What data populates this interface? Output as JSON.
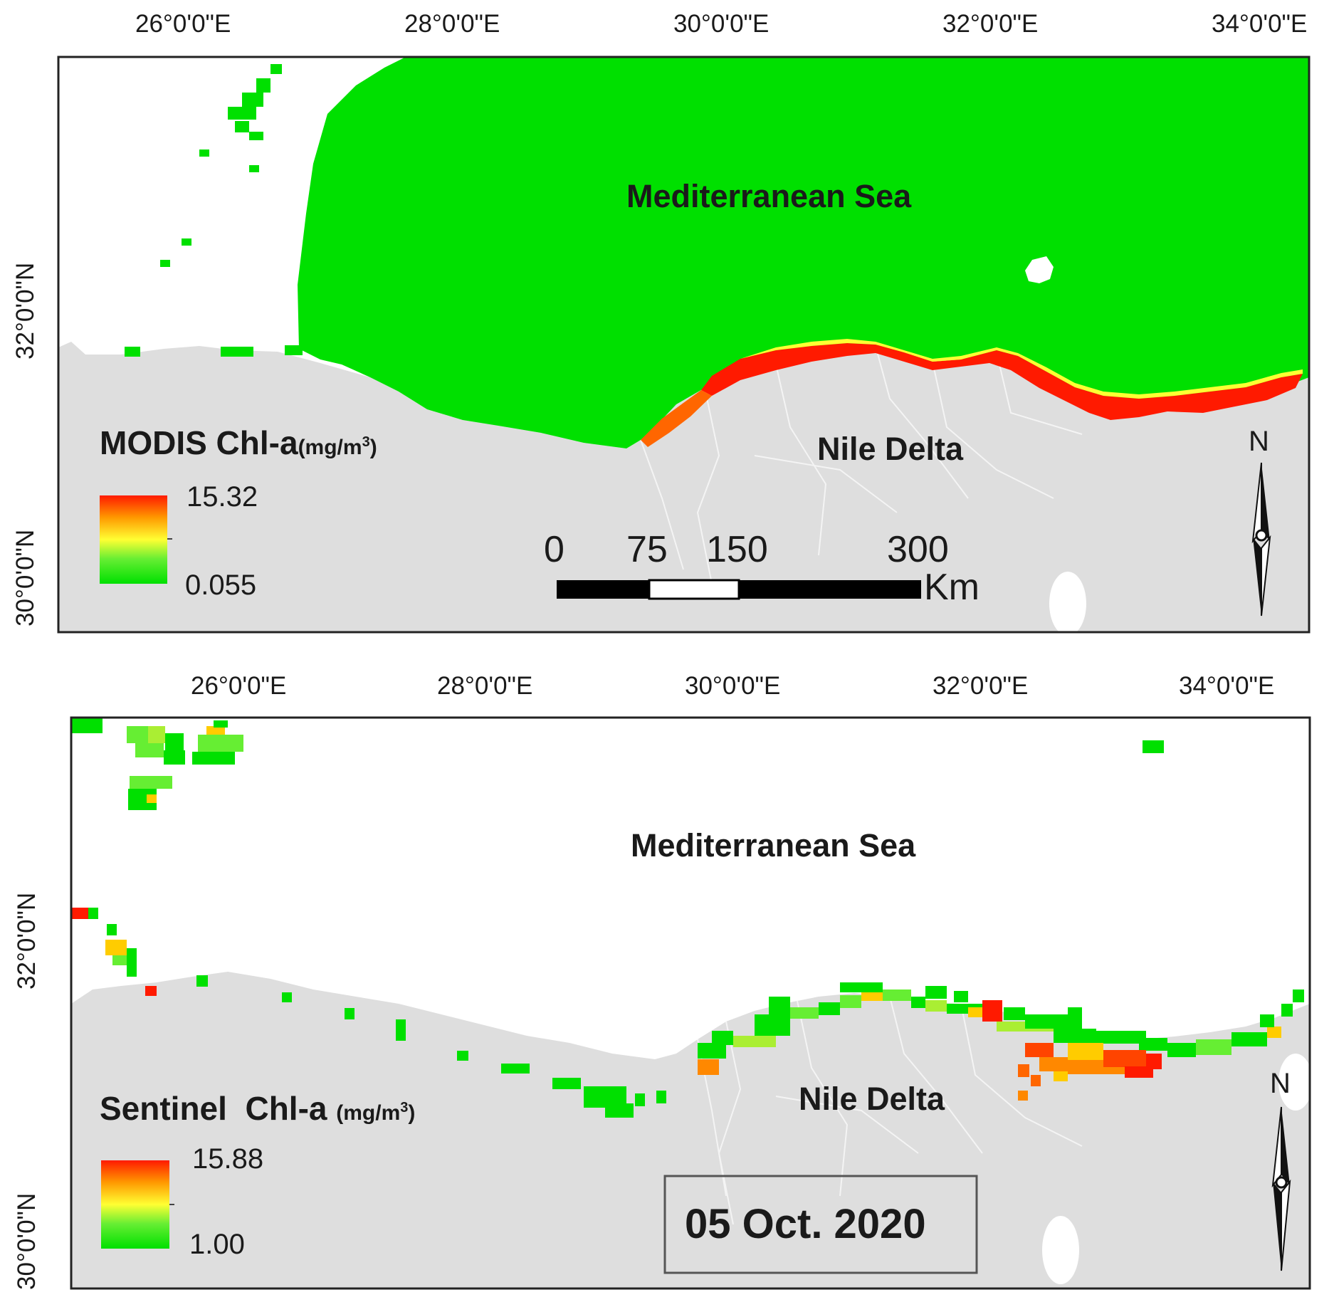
{
  "colors": {
    "land": "#dedede",
    "sea": "#ffffff",
    "chl_low": "#00e000",
    "chl_mid": "#ffff33",
    "chl_high": "#ff1a00",
    "frame": "#222222"
  },
  "modis_panel": {
    "lon_ticks": [
      "26°0'0\"E",
      "28°0'0\"E",
      "30°0'0\"E",
      "32°0'0\"E",
      "34°0'0\"E"
    ],
    "lat_ticks": [
      "32°0'0\"N",
      "30°0'0\"N"
    ],
    "sea_label": "Mediterranean Sea",
    "delta_label": "Nile Delta",
    "legend_title": "MODIS Chl-a",
    "legend_unit_prefix": "(mg/m",
    "legend_unit_sup": "3",
    "legend_unit_suffix": ")",
    "legend_max": "15.32",
    "legend_min": "0.055",
    "scale_labels": [
      "0",
      "75",
      "150",
      "300"
    ],
    "scale_unit": "Km",
    "north_label": "N"
  },
  "sentinel_panel": {
    "lon_ticks": [
      "26°0'0\"E",
      "28°0'0\"E",
      "30°0'0\"E",
      "32°0'0\"E",
      "34°0'0\"E"
    ],
    "lat_ticks": [
      "32°0'0\"N",
      "30°0'0\"N"
    ],
    "sea_label": "Mediterranean Sea",
    "delta_label": "Nile Delta",
    "legend_title": "Sentinel  Chl-a",
    "legend_unit_prefix": "(mg/m",
    "legend_unit_sup": "3",
    "legend_unit_suffix": ")",
    "legend_max": "15.88",
    "legend_min": "1.00",
    "north_label": "N",
    "date_label": "05 Oct. 2020"
  }
}
